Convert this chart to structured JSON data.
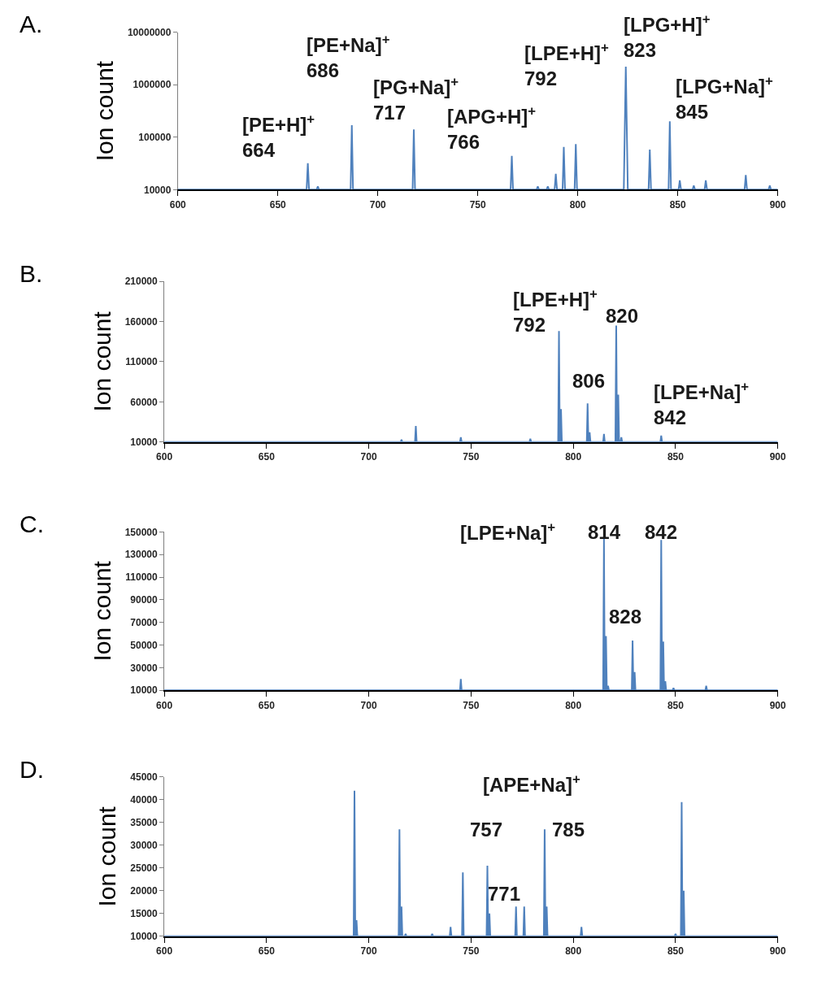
{
  "chart_data": [
    {
      "type": "line",
      "title": "A.",
      "ylabel": "Ion count",
      "color": "#4f81bd",
      "log": "y",
      "grid": false,
      "xlim": [
        600,
        900
      ],
      "xticks": [
        600,
        650,
        700,
        750,
        800,
        850,
        900
      ],
      "ylim": [
        10000,
        10000000
      ],
      "yticks": [
        10000,
        100000,
        1000000,
        10000000
      ],
      "x": [
        600,
        664.4,
        665,
        665.6,
        669.4,
        670,
        670.6,
        686.4,
        687,
        687.6,
        717.4,
        718,
        718.6,
        766.4,
        767,
        767.6,
        779.4,
        780,
        780.6,
        784.4,
        785,
        785.6,
        788.4,
        789,
        789.6,
        792.4,
        793,
        793.6,
        798.4,
        799,
        799.6,
        823,
        824,
        825,
        835.4,
        836,
        836.6,
        845.4,
        846,
        846.6,
        850.4,
        851,
        851.6,
        857.4,
        858,
        858.6,
        863.4,
        864,
        864.6,
        883.4,
        884,
        884.6,
        895.4,
        896,
        896.6,
        900
      ],
      "values": [
        10000,
        10000,
        32000,
        10000,
        10000,
        11500,
        10000,
        10000,
        170000,
        10000,
        10000,
        140000,
        10000,
        10000,
        44000,
        10000,
        10000,
        11500,
        10000,
        10000,
        11500,
        10000,
        10000,
        20000,
        10000,
        10000,
        65000,
        10000,
        10000,
        74000,
        10000,
        10000,
        2200000,
        10000,
        10000,
        58000,
        10000,
        10000,
        200000,
        10000,
        10000,
        15000,
        10000,
        10000,
        12000,
        10000,
        10000,
        15000,
        10000,
        10000,
        19000,
        10000,
        10000,
        12000,
        10000,
        10000
      ],
      "annotations": [
        "[PE+H]$^{+}$\n664",
        "[PE+Na]$^{+}$\n686",
        "[PG+Na]$^{+}$\n717",
        "[APG+H]$^{+}$\n766",
        "[LPE+H]$^{+}$\n792",
        "[LPG+H]$^{+}$\n823",
        "[LPG+Na]$^{+}$\n845"
      ]
    },
    {
      "type": "line",
      "title": "B.",
      "ylabel": "Ion count",
      "color": "#4f81bd",
      "grid": false,
      "xlim": [
        600,
        900
      ],
      "xticks": [
        600,
        650,
        700,
        750,
        800,
        850,
        900
      ],
      "ylim": [
        10000,
        210000
      ],
      "yticks": [
        10000,
        60000,
        110000,
        160000,
        210000
      ],
      "x": [
        600,
        715.6,
        716,
        716.4,
        722.6,
        723,
        723.4,
        744.6,
        745,
        745.4,
        778.6,
        779,
        779.4,
        792.6,
        793,
        793.4,
        793.6,
        794,
        794.4,
        806.6,
        807,
        807.4,
        807.6,
        808,
        808.4,
        814.6,
        815,
        815.4,
        820.6,
        821,
        821.4,
        821.6,
        822,
        822.4,
        823.1,
        823.5,
        823.9,
        842.6,
        843,
        843.4,
        900
      ],
      "values": [
        10000,
        10000,
        13000,
        10000,
        10000,
        30000,
        10000,
        10000,
        16000,
        10000,
        10000,
        14000,
        10000,
        10000,
        148000,
        10000,
        10000,
        51000,
        10000,
        10000,
        58000,
        10000,
        10000,
        22000,
        10000,
        10000,
        20000,
        10000,
        10000,
        155000,
        10000,
        10000,
        69000,
        10000,
        10000,
        16000,
        10000,
        10000,
        18000,
        10000,
        10000
      ],
      "annotations": [
        "[LPE+H]$^{+}$\n792",
        "820",
        "806",
        "[LPE+Na]$^{+}$\n842"
      ]
    },
    {
      "type": "line",
      "title": "C.",
      "ylabel": "Ion count",
      "color": "#4f81bd",
      "grid": false,
      "xlim": [
        600,
        900
      ],
      "xticks": [
        600,
        650,
        700,
        750,
        800,
        850,
        900
      ],
      "ylim": [
        10000,
        150000
      ],
      "yticks": [
        10000,
        30000,
        50000,
        70000,
        90000,
        110000,
        130000,
        150000
      ],
      "x": [
        600,
        744.6,
        745,
        745.4,
        814.6,
        815,
        815.4,
        815.6,
        816,
        816.4,
        816.6,
        817,
        817.4,
        828.6,
        829,
        829.4,
        829.6,
        830,
        830.4,
        842.6,
        843,
        843.4,
        843.6,
        844,
        844.4,
        844.6,
        845,
        845.4,
        848.6,
        849,
        849.4,
        864.6,
        865,
        865.4,
        900
      ],
      "values": [
        10000,
        10000,
        20000,
        10000,
        10000,
        144000,
        10000,
        10000,
        58000,
        10000,
        10000,
        14000,
        10000,
        10000,
        54000,
        10000,
        10000,
        26000,
        10000,
        10000,
        143000,
        10000,
        10000,
        53000,
        10000,
        10000,
        18000,
        10000,
        10000,
        12000,
        10000,
        10000,
        14000,
        10000,
        10000
      ],
      "annotations": [
        "[LPE+Na]$^{+}$",
        "814",
        "842",
        "828"
      ]
    },
    {
      "type": "line",
      "title": "D.",
      "ylabel": "Ion count",
      "color": "#4f81bd",
      "grid": false,
      "xlim": [
        600,
        900
      ],
      "xticks": [
        600,
        650,
        700,
        750,
        800,
        850,
        900
      ],
      "ylim": [
        10000,
        45000
      ],
      "yticks": [
        10000,
        15000,
        20000,
        25000,
        30000,
        35000,
        40000,
        45000
      ],
      "x": [
        600,
        692.6,
        693,
        693.4,
        693.6,
        694,
        694.4,
        714.6,
        715,
        715.4,
        715.6,
        716,
        716.4,
        717.6,
        718,
        718.4,
        730.6,
        731,
        731.4,
        739.6,
        740,
        740.4,
        745.6,
        746,
        746.4,
        757.6,
        758,
        758.4,
        758.6,
        759,
        759.4,
        771.6,
        772,
        772.4,
        775.6,
        776,
        776.4,
        785.6,
        786,
        786.4,
        786.6,
        787,
        787.4,
        803.6,
        804,
        804.4,
        849.6,
        850,
        850.4,
        852.6,
        853,
        853.4,
        853.6,
        854,
        854.4,
        900
      ],
      "values": [
        10000,
        10000,
        42000,
        10000,
        10000,
        13500,
        10000,
        10000,
        33500,
        10000,
        10000,
        16500,
        10000,
        10000,
        10500,
        10000,
        10000,
        10500,
        10000,
        10000,
        12000,
        10000,
        10000,
        24000,
        10000,
        10000,
        25500,
        10000,
        10000,
        15000,
        10000,
        10000,
        16500,
        10000,
        10000,
        16500,
        10000,
        10000,
        33500,
        10000,
        10000,
        16500,
        10000,
        10000,
        12000,
        10000,
        10000,
        10500,
        10000,
        10000,
        39500,
        10000,
        10000,
        20000,
        10000,
        10000
      ],
      "annotations": [
        "[APE+Na]$^{+}$",
        "757",
        "785",
        "771"
      ]
    }
  ]
}
